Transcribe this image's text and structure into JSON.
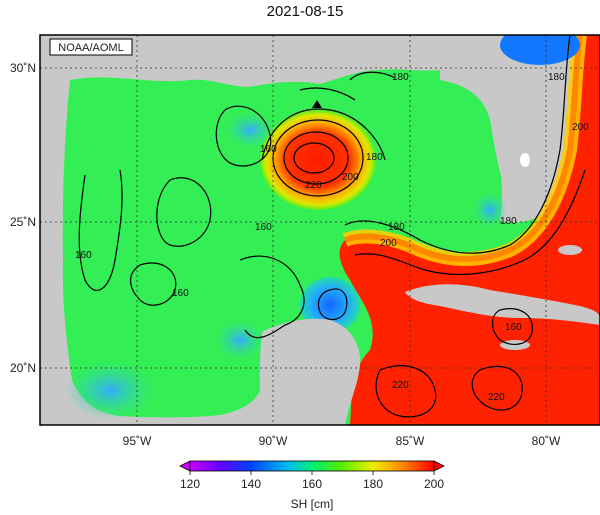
{
  "title": "2021-08-15",
  "credit": "NOAA/AOML",
  "axes": {
    "lon_ticks": [
      "95˚W",
      "90˚W",
      "85˚W",
      "80˚W"
    ],
    "lat_ticks": [
      "30˚N",
      "25˚N",
      "20˚N"
    ]
  },
  "colorbar": {
    "label": "SH [cm]",
    "ticks": [
      "120",
      "140",
      "160",
      "180",
      "200"
    ],
    "min": 120,
    "max": 200,
    "colors": [
      "#cc00ff",
      "#3300ff",
      "#0088ff",
      "#00dddd",
      "#00ee66",
      "#66ee00",
      "#ddee00",
      "#ffaa00",
      "#ff3300",
      "#ff0000"
    ]
  },
  "contour_labels": [
    "160",
    "160",
    "160",
    "160",
    "180",
    "180",
    "180",
    "180",
    "200",
    "200",
    "200",
    "220",
    "220",
    "220",
    "180",
    "160"
  ],
  "colors": {
    "land": "#c8c8c8",
    "high": "#ff2200",
    "low": "#2288ff",
    "mid": "#33ee55"
  }
}
